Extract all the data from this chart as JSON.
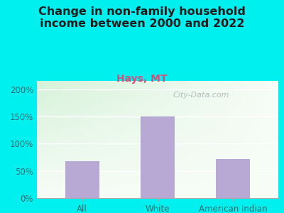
{
  "title": "Change in non-family household\nincome between 2000 and 2022",
  "subtitle": "Hays, MT",
  "categories": [
    "All",
    "White",
    "American Indian"
  ],
  "values": [
    68,
    150,
    72
  ],
  "bar_color": "#b8a8d4",
  "title_fontsize": 11.5,
  "subtitle_fontsize": 10,
  "subtitle_color": "#d4507a",
  "title_color": "#1a1a1a",
  "tick_color": "#2a6e6e",
  "ylim": [
    0,
    215
  ],
  "yticks": [
    0,
    50,
    100,
    150,
    200
  ],
  "ytick_labels": [
    "0%",
    "50%",
    "100%",
    "150%",
    "200%"
  ],
  "background_outer": "#00f0f0",
  "watermark": "City-Data.com",
  "bar_width": 0.45,
  "grad_left_color": "#b8ead8",
  "grad_right_color": "#f0f8f0",
  "grad_top_color": "#d4eed8",
  "grad_bottom_color": "#f8faf0"
}
